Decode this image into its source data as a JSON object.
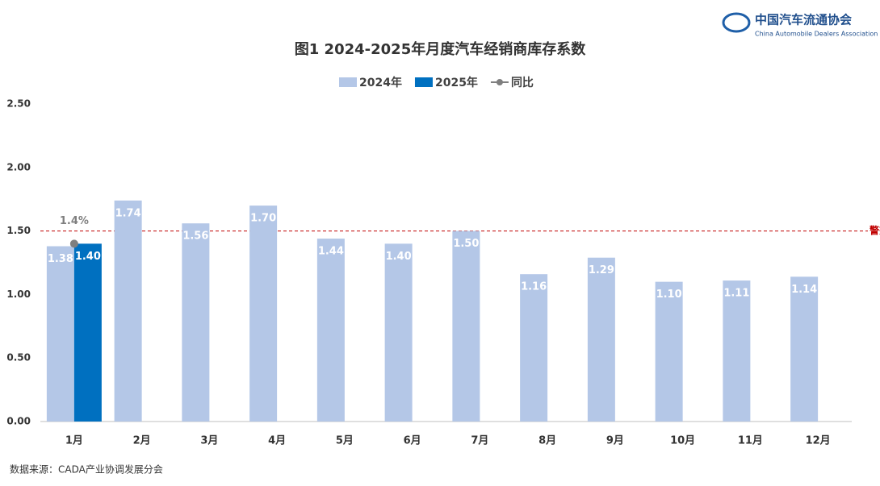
{
  "header": {
    "org": "中国汽车流通协会",
    "org_en": "China Automobile Dealers Association"
  },
  "chart_data": {
    "type": "bar",
    "title": "图1  2024-2025年月度汽车经销商库存系数",
    "categories": [
      "1月",
      "2月",
      "3月",
      "4月",
      "5月",
      "6月",
      "7月",
      "8月",
      "9月",
      "10月",
      "11月",
      "12月"
    ],
    "series": [
      {
        "name": "2024年",
        "color": "#b4c7e7",
        "values": [
          1.38,
          1.74,
          1.56,
          1.7,
          1.44,
          1.4,
          1.5,
          1.16,
          1.29,
          1.1,
          1.11,
          1.14
        ],
        "value_labels": [
          "1.38",
          "1.74",
          "1.56",
          "1.70",
          "1.44",
          "1.40",
          "1.50",
          "1.16",
          "1.29",
          "1.10",
          "1.11",
          "1.14"
        ]
      },
      {
        "name": "2025年",
        "color": "#0070c0",
        "values": [
          1.4,
          null,
          null,
          null,
          null,
          null,
          null,
          null,
          null,
          null,
          null,
          null
        ],
        "value_labels": [
          "1.40",
          null,
          null,
          null,
          null,
          null,
          null,
          null,
          null,
          null,
          null,
          null
        ]
      },
      {
        "name": "同比",
        "type": "line",
        "color": "#7f7f7f",
        "values": [
          1.4,
          null,
          null,
          null,
          null,
          null,
          null,
          null,
          null,
          null,
          null,
          null
        ],
        "value_labels": [
          "1.4%",
          null,
          null,
          null,
          null,
          null,
          null,
          null,
          null,
          null,
          null,
          null
        ]
      }
    ],
    "ylim": [
      0,
      2.5
    ],
    "yticks": [
      {
        "value": 0,
        "label": "0.00"
      },
      {
        "value": 0.5,
        "label": "0.50"
      },
      {
        "value": 1,
        "label": "1.00"
      },
      {
        "value": 1.5,
        "label": "1.50"
      },
      {
        "value": 2,
        "label": "2.00"
      },
      {
        "value": 2.5,
        "label": "2.50"
      }
    ],
    "threshold": {
      "value": 1.5,
      "label": "警戒线",
      "color": "#c00000"
    },
    "legend": "top",
    "source": "数据来源：CADA产业协调发展分会"
  }
}
